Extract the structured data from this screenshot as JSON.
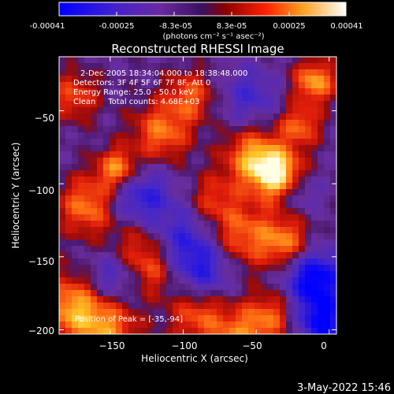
{
  "colorbar": {
    "ticks": [
      "-0.00041",
      "-0.00025",
      "-8.3e-05",
      "8.3e-05",
      "0.00025",
      "0.00041"
    ],
    "unit_label": "(photons cm⁻² s⁻¹ asec⁻²)",
    "range": [
      -0.00041,
      0.00041
    ]
  },
  "chart_data": {
    "type": "heatmap",
    "title": "Reconstructed RHESSI Image",
    "xlabel": "Heliocentric X (arcsec)",
    "ylabel": "Heliocentric Y (arcsec)",
    "xlim": [
      -185,
      5
    ],
    "ylim": [
      -203,
      -13
    ],
    "xticks": [
      -150,
      -100,
      -50,
      0
    ],
    "yticks": [
      -50,
      -100,
      -150,
      -200
    ],
    "xtick_labels": [
      "−150",
      "−100",
      "−50",
      "0"
    ],
    "ytick_labels": [
      "−50",
      "−100",
      "−150",
      "−200"
    ],
    "annotations": [
      "2-Dec-2005 18:34:04.000 to 18:38:48.000",
      "Detectors: 3F 4F 5F 6F 7F 8F, Att 0",
      "Energy Range: 25.0 - 50.0 keV",
      "Clean     Total counts: 4.68E+03"
    ],
    "peak_label": "Position of Peak = [-35,-94]",
    "peak": [
      -35,
      -94
    ],
    "colormap": [
      "#0000ff",
      "#5a2aa0",
      "#6e2b95",
      "#cc1a1a",
      "#ff5a10",
      "#ffb020",
      "#ffffff"
    ]
  },
  "footer": {
    "timestamp": "3-May-2022 15:46"
  }
}
